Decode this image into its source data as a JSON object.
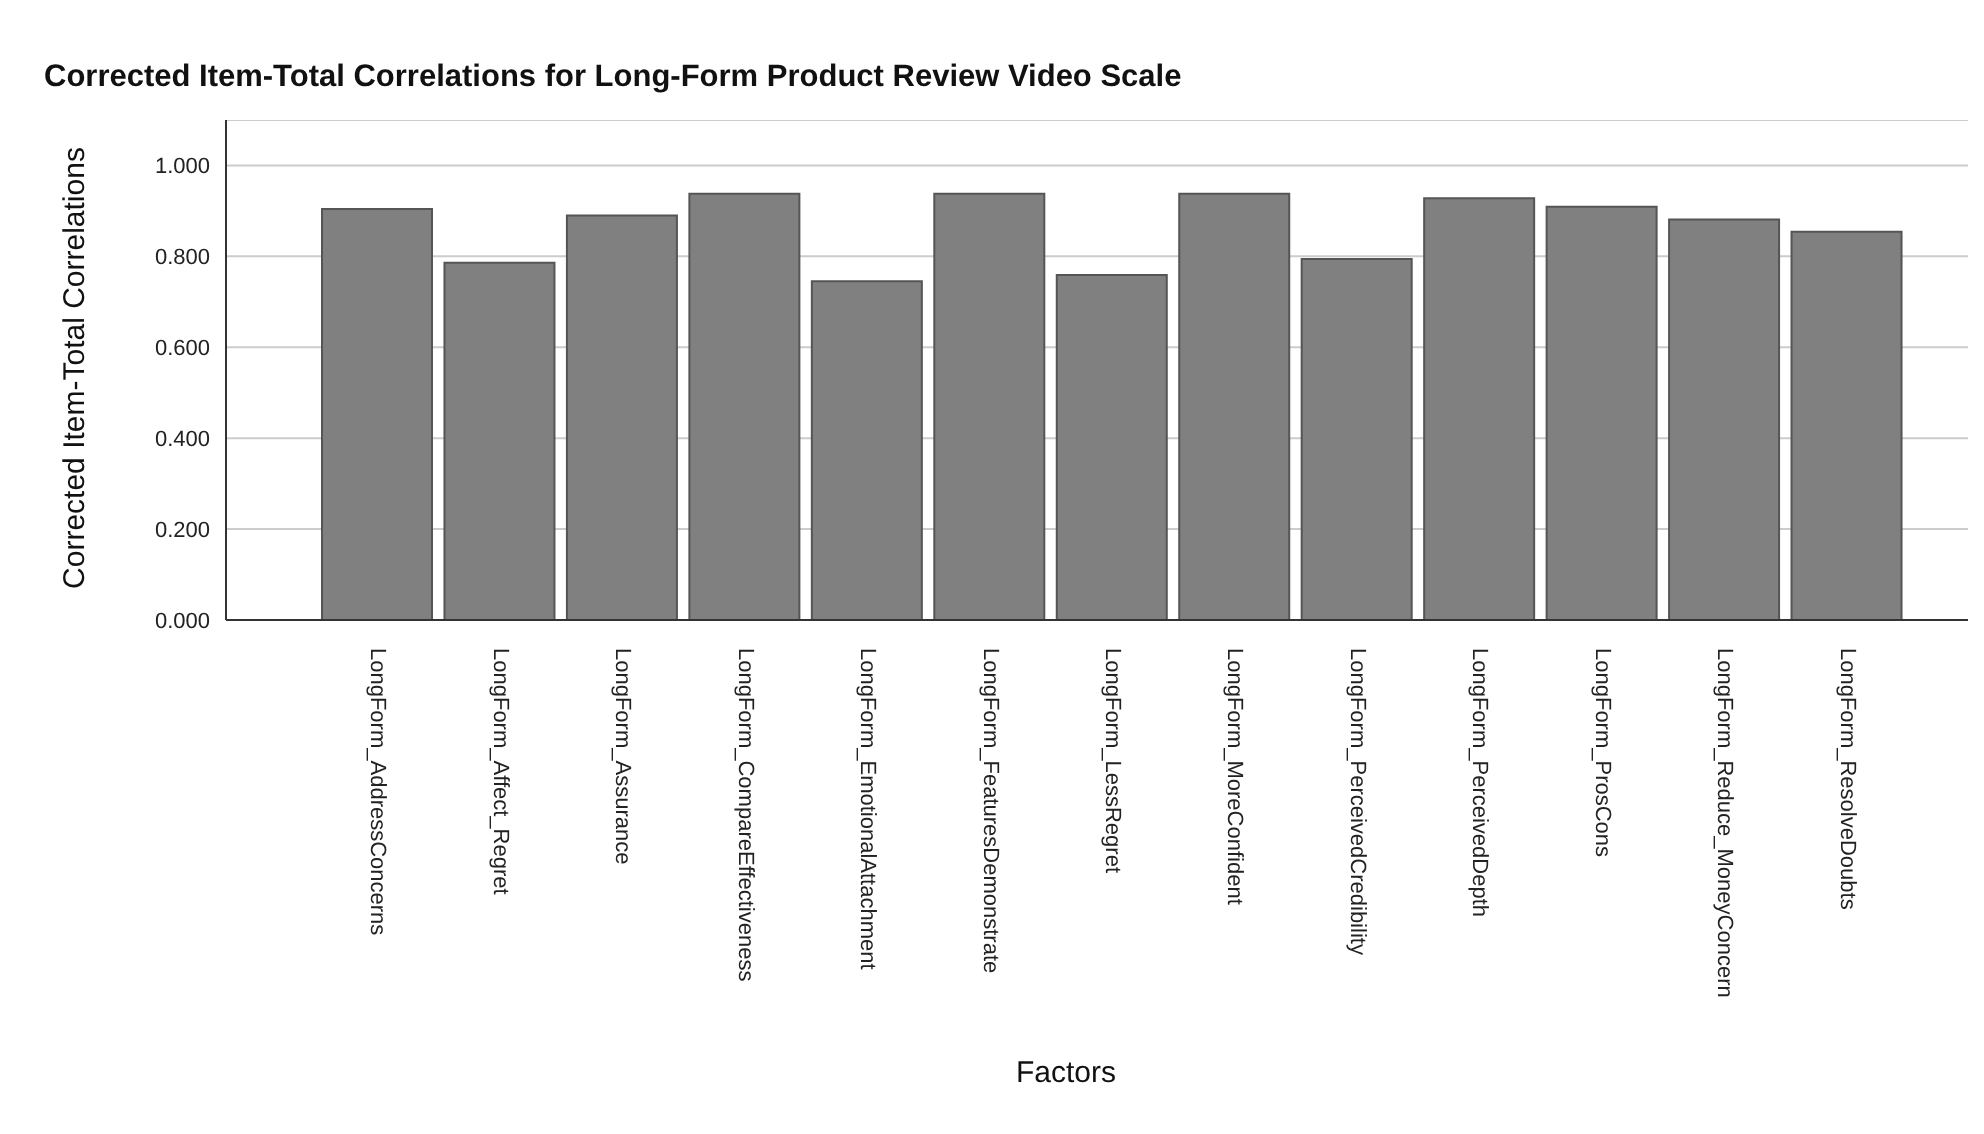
{
  "chart_data": {
    "type": "bar",
    "title": "Corrected Item-Total Correlations for Long-Form Product Review Video Scale",
    "xlabel": "Factors",
    "ylabel": "Corrected Item-Total Correlations",
    "categories": [
      "LongForm_AddressConcerns",
      "LongForm_Affect_Regret",
      "LongForm_Assurance",
      "LongForm_CompareEffectiveness",
      "LongForm_EmotionalAttachment",
      "LongForm_FeaturesDemonstrate",
      "LongForm_LessRegret",
      "LongForm_MoreConfident",
      "LongForm_PerceivedCredibility",
      "LongForm_PerceivedDepth",
      "LongForm_ProsCons",
      "LongForm_Reduce_MoneyConcern",
      "LongForm_ResolveDoubts"
    ],
    "values": [
      0.904,
      0.786,
      0.89,
      0.938,
      0.745,
      0.938,
      0.759,
      0.938,
      0.794,
      0.928,
      0.909,
      0.881,
      0.854
    ],
    "color": "#808080",
    "ylim": [
      0,
      1.1
    ],
    "yticks": [
      {
        "value": 0,
        "label": "0.000"
      },
      {
        "value": 0.2,
        "label": "0.200"
      },
      {
        "value": 0.4,
        "label": "0.400"
      },
      {
        "value": 0.6,
        "label": "0.600"
      },
      {
        "value": 0.8,
        "label": "0.800"
      },
      {
        "value": 1,
        "label": "1.000"
      }
    ],
    "grid": "y",
    "legend": false
  }
}
